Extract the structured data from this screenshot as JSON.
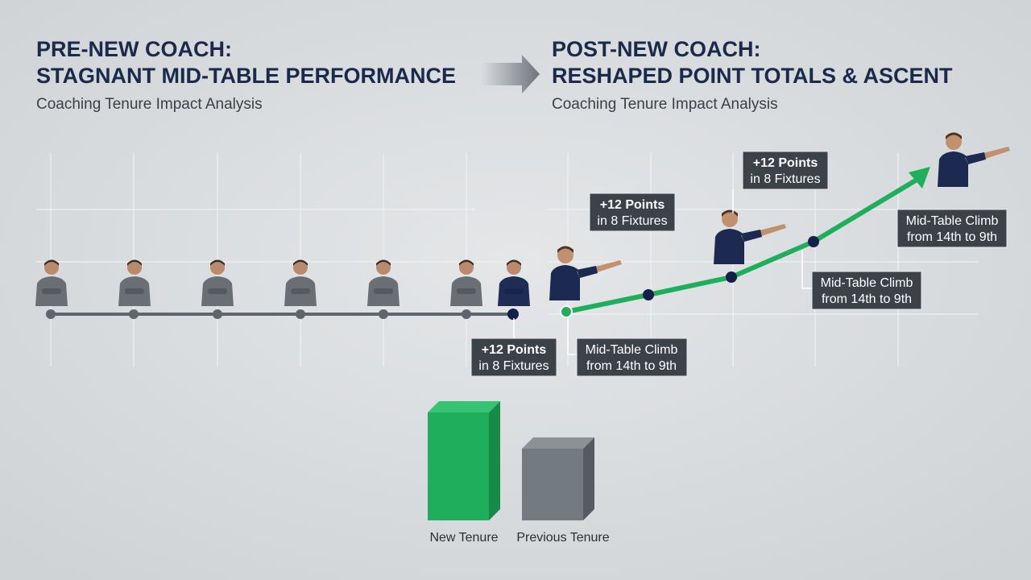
{
  "left": {
    "title_line1": "PRE-NEW COACH:",
    "title_line2": "STAGNANT MID-TABLE PERFORMANCE",
    "subtitle": "Coaching Tenure Impact Analysis"
  },
  "right": {
    "title_line1": "POST-NEW COACH:",
    "title_line2": "RESHAPED POINT TOTALS & ASCENT",
    "subtitle": "Coaching Tenure Impact Analysis"
  },
  "callouts": [
    {
      "line1": "+12 Points",
      "line2": "in 8 Fixtures"
    },
    {
      "line1": "Mid-Table Climb",
      "line2": "from 14th to 9th"
    },
    {
      "line1": "+12 Points",
      "line2": "in 8 Fixtures"
    },
    {
      "line1": "+12 Points",
      "line2": "in 8 Fixtures"
    },
    {
      "line1": "Mid-Table Climb",
      "line2": "from 14th to 9th"
    },
    {
      "line1": "Mid-Table Climb",
      "line2": "from 14th to 9th"
    }
  ],
  "bars": [
    {
      "label": "New Tenure"
    },
    {
      "label": "Previous Tenure"
    }
  ]
}
